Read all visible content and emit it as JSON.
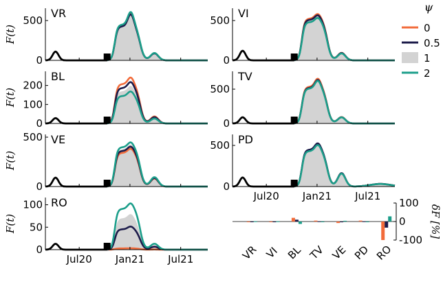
{
  "chart_data": {
    "type": "area",
    "ylabel": "F(t)",
    "x_ticks": [
      "Jul20",
      "Jan21",
      "Jul21"
    ],
    "legend": {
      "title": "ψ",
      "items": [
        {
          "label": "0",
          "color": "#f26b3a"
        },
        {
          "label": "0.5",
          "color": "#1c1b4a"
        },
        {
          "label": "1",
          "color": "#d3d3d3"
        },
        {
          "label": "2",
          "color": "#1b9e8a"
        }
      ]
    },
    "panels": [
      {
        "name": "VR",
        "ylim": [
          0,
          620
        ],
        "yticks": [
          0,
          500
        ],
        "peak": 600,
        "mid": 440,
        "second": 90,
        "early": 110,
        "mult": {
          "0": 1.0,
          "0.5": 0.97,
          "2": 1.02
        },
        "late_rise": false
      },
      {
        "name": "VI",
        "ylim": [
          0,
          620
        ],
        "yticks": [
          0,
          500
        ],
        "peak": 560,
        "mid": 500,
        "second": 90,
        "early": 120,
        "mult": {
          "0": 1.05,
          "0.5": 1.02,
          "2": 0.96
        },
        "late_rise": false
      },
      {
        "name": "BL",
        "ylim": [
          0,
          260
        ],
        "yticks": [
          0,
          100,
          200
        ],
        "peak": 200,
        "mid": 170,
        "second": 30,
        "early": 28,
        "mult": {
          "0": 1.22,
          "0.5": 1.1,
          "2": 0.85
        },
        "late_rise": false
      },
      {
        "name": "TV",
        "ylim": [
          0,
          720
        ],
        "yticks": [
          0,
          500
        ],
        "peak": 640,
        "mid": 520,
        "second": 90,
        "early": 90,
        "mult": {
          "0": 1.03,
          "0.5": 1.0,
          "2": 0.98
        },
        "late_rise": false
      },
      {
        "name": "VE",
        "ylim": [
          0,
          500
        ],
        "yticks": [
          0,
          500
        ],
        "peak": 430,
        "mid": 380,
        "second": 90,
        "early": 90,
        "mult": {
          "0": 0.9,
          "0.5": 0.95,
          "2": 1.05
        },
        "late_rise": false
      },
      {
        "name": "PD",
        "ylim": [
          0,
          600
        ],
        "yticks": [
          0,
          500
        ],
        "peak": 520,
        "mid": 440,
        "second": 160,
        "early": 110,
        "mult": {
          "0": 1.0,
          "0.5": 1.02,
          "2": 0.98
        },
        "late_rise": true
      },
      {
        "name": "RO",
        "ylim": [
          0,
          110
        ],
        "yticks": [
          0,
          50,
          100
        ],
        "peak": 80,
        "mid": 70,
        "second": 10,
        "early": 13,
        "mult": {
          "0": 0.04,
          "0.5": 0.65,
          "2": 1.3
        },
        "late_rise": false
      }
    ],
    "bar_panel": {
      "categories": [
        "VR",
        "VI",
        "BL",
        "TV",
        "VE",
        "PD",
        "RO"
      ],
      "ylabel": "δF [%]",
      "ylim": [
        -100,
        100
      ],
      "yticks": [
        -100,
        0,
        100
      ],
      "series": [
        {
          "name": "0",
          "color": "#f26b3a",
          "values": [
            -2,
            -1,
            20,
            5,
            -8,
            5,
            -100
          ]
        },
        {
          "name": "0.5",
          "color": "#1c1b4a",
          "values": [
            -1,
            -1,
            10,
            1,
            -4,
            1,
            -33
          ]
        },
        {
          "name": "2",
          "color": "#1b9e8a",
          "values": [
            1,
            1,
            -13,
            -2,
            4,
            -1,
            28
          ]
        }
      ]
    }
  }
}
